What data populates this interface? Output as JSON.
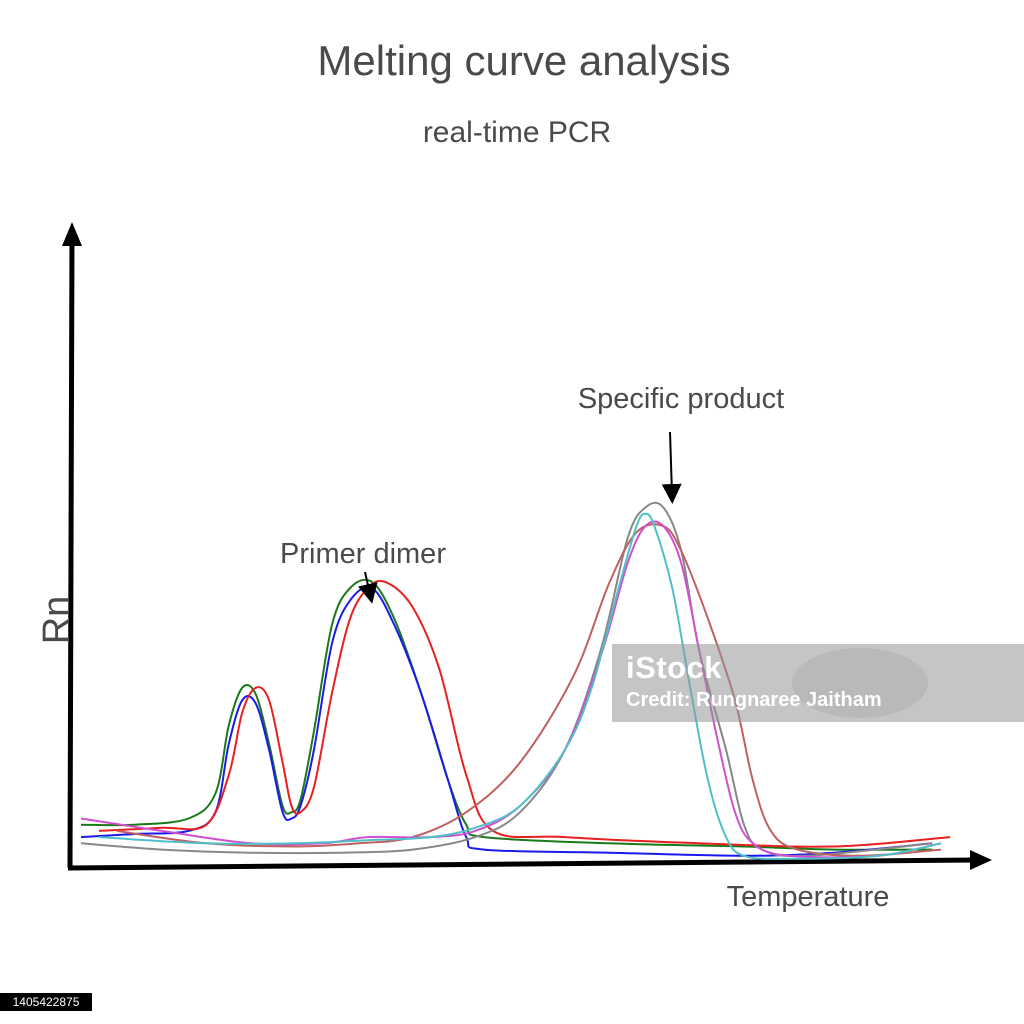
{
  "chart_data": {
    "type": "line",
    "title": "Melting curve analysis",
    "subtitle": "real-time PCR",
    "xlabel": "Temperature",
    "ylabel": "Rn",
    "xlim": [
      0,
      100
    ],
    "ylim": [
      0,
      100
    ],
    "grid": false,
    "legend": "none",
    "annotations": [
      {
        "text": "Primer dimer",
        "x": 33,
        "y": 40
      },
      {
        "text": "Specific product",
        "x": 65,
        "y": 62
      }
    ],
    "series": [
      {
        "color": "#1a7a1a",
        "points": [
          [
            1,
            6
          ],
          [
            7,
            6
          ],
          [
            13,
            7
          ],
          [
            16,
            11
          ],
          [
            17.5,
            22
          ],
          [
            19,
            28
          ],
          [
            20.5,
            27
          ],
          [
            22,
            19
          ],
          [
            23.5,
            9
          ],
          [
            24.5,
            8
          ],
          [
            25.5,
            10
          ],
          [
            27,
            21
          ],
          [
            29,
            38
          ],
          [
            31,
            44
          ],
          [
            33.5,
            45
          ],
          [
            36,
            39
          ],
          [
            39,
            27
          ],
          [
            42,
            13
          ],
          [
            44,
            6
          ],
          [
            46,
            4
          ],
          [
            60,
            3
          ],
          [
            75,
            2.5
          ],
          [
            85,
            2
          ],
          [
            96,
            2
          ]
        ]
      },
      {
        "color": "#1a1aee",
        "points": [
          [
            1,
            4
          ],
          [
            7,
            4.5
          ],
          [
            13,
            5
          ],
          [
            16,
            8
          ],
          [
            17.5,
            19
          ],
          [
            19,
            26
          ],
          [
            20.5,
            25.5
          ],
          [
            22,
            18
          ],
          [
            23.5,
            8
          ],
          [
            24.5,
            7
          ],
          [
            25.5,
            9
          ],
          [
            27,
            18
          ],
          [
            29,
            35
          ],
          [
            31,
            42
          ],
          [
            33.5,
            44
          ],
          [
            36,
            38
          ],
          [
            39,
            27
          ],
          [
            42,
            13
          ],
          [
            44,
            4
          ],
          [
            46,
            2
          ],
          [
            60,
            1.5
          ],
          [
            75,
            1
          ],
          [
            85,
            1.5
          ],
          [
            96,
            3
          ]
        ]
      },
      {
        "color": "#e82020",
        "points": [
          [
            3,
            5
          ],
          [
            10,
            5.5
          ],
          [
            15,
            6
          ],
          [
            17.5,
            14
          ],
          [
            19,
            24
          ],
          [
            20.5,
            28
          ],
          [
            22,
            26
          ],
          [
            23.5,
            16
          ],
          [
            24.5,
            9
          ],
          [
            25.5,
            8
          ],
          [
            27,
            12
          ],
          [
            29,
            27
          ],
          [
            31,
            39
          ],
          [
            33,
            44
          ],
          [
            35,
            45
          ],
          [
            38,
            41
          ],
          [
            41,
            31
          ],
          [
            44,
            14
          ],
          [
            47,
            5
          ],
          [
            55,
            4
          ],
          [
            70,
            3
          ],
          [
            85,
            2.5
          ],
          [
            98,
            4
          ]
        ]
      },
      {
        "color": "#888888",
        "points": [
          [
            1,
            3
          ],
          [
            10,
            2
          ],
          [
            20,
            1.5
          ],
          [
            30,
            1.5
          ],
          [
            38,
            2
          ],
          [
            45,
            4
          ],
          [
            50,
            8
          ],
          [
            55,
            18
          ],
          [
            59,
            34
          ],
          [
            62,
            52
          ],
          [
            64,
            57
          ],
          [
            66,
            57
          ],
          [
            68,
            50
          ],
          [
            70,
            34
          ],
          [
            73,
            18
          ],
          [
            75,
            6
          ],
          [
            77,
            2
          ],
          [
            82,
            1
          ],
          [
            96,
            3
          ]
        ]
      },
      {
        "color": "#c06060",
        "points": [
          [
            5,
            5
          ],
          [
            15,
            3
          ],
          [
            25,
            2.5
          ],
          [
            32,
            3
          ],
          [
            38,
            4
          ],
          [
            44,
            8
          ],
          [
            50,
            16
          ],
          [
            56,
            30
          ],
          [
            60,
            45
          ],
          [
            63,
            53
          ],
          [
            66,
            54
          ],
          [
            68,
            50
          ],
          [
            71,
            39
          ],
          [
            74,
            26
          ],
          [
            76,
            13
          ],
          [
            78,
            5
          ],
          [
            81,
            2
          ],
          [
            88,
            1
          ],
          [
            97,
            2
          ]
        ]
      },
      {
        "color": "#d050d0",
        "points": [
          [
            1,
            7
          ],
          [
            10,
            5
          ],
          [
            20,
            3
          ],
          [
            28,
            3
          ],
          [
            33,
            4
          ],
          [
            40,
            4
          ],
          [
            45,
            5
          ],
          [
            50,
            9
          ],
          [
            55,
            18
          ],
          [
            59,
            33
          ],
          [
            62,
            48
          ],
          [
            64,
            54
          ],
          [
            66,
            54
          ],
          [
            68,
            48
          ],
          [
            70,
            34
          ],
          [
            72,
            20
          ],
          [
            74,
            8
          ],
          [
            76,
            3
          ],
          [
            80,
            1
          ],
          [
            90,
            1
          ],
          [
            97,
            3
          ]
        ]
      },
      {
        "color": "#50c0c8",
        "points": [
          [
            3,
            4
          ],
          [
            15,
            3
          ],
          [
            25,
            3
          ],
          [
            33,
            3.5
          ],
          [
            40,
            4
          ],
          [
            45,
            5.5
          ],
          [
            50,
            9
          ],
          [
            55,
            18
          ],
          [
            58,
            28
          ],
          [
            61,
            44
          ],
          [
            63,
            54
          ],
          [
            64,
            56
          ],
          [
            65,
            54
          ],
          [
            67,
            44
          ],
          [
            69,
            28
          ],
          [
            71,
            13
          ],
          [
            73,
            4
          ],
          [
            75,
            1
          ],
          [
            80,
            0.5
          ],
          [
            90,
            1
          ],
          [
            97,
            3
          ]
        ]
      }
    ]
  },
  "watermark": {
    "logo": "iStock",
    "credit": "Credit: Rungnaree Jaitham",
    "stock_id": "1405422875"
  }
}
